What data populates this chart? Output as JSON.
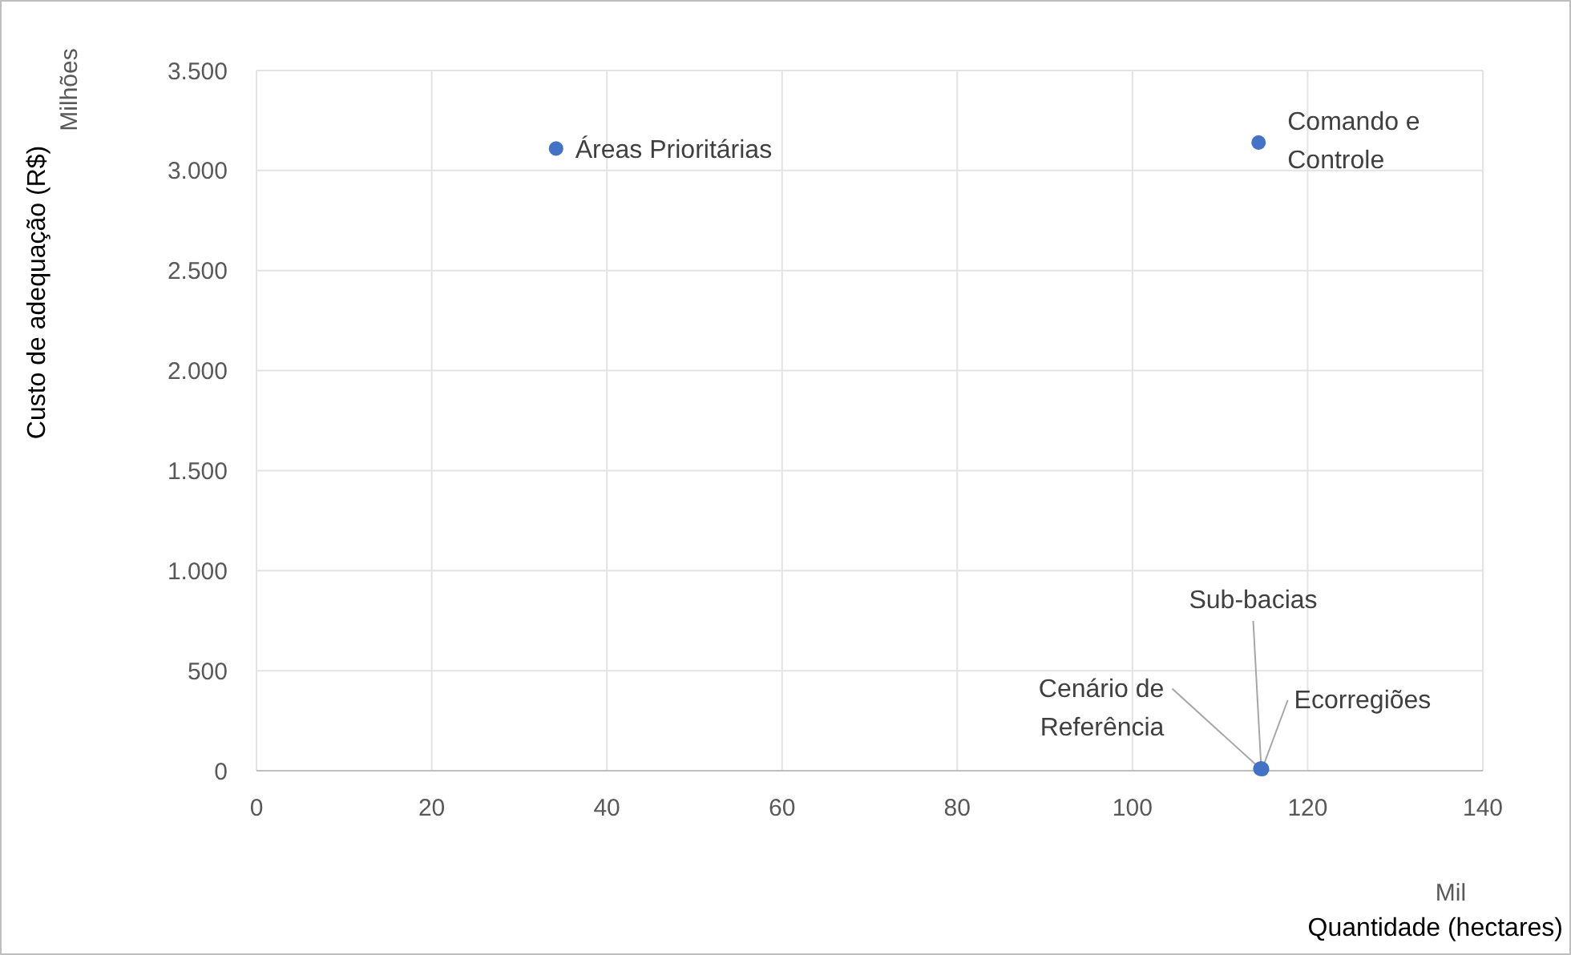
{
  "chart_data": {
    "type": "scatter",
    "xlabel": "Quantidade (hectares)",
    "ylabel": "Custo de adequação (R$)",
    "x": [
      34.2,
      114.4,
      114.6,
      114.7,
      114.8
    ],
    "values": [
      3110,
      3140,
      10,
      12,
      8
    ],
    "color": "#4472c4",
    "marker": "circle",
    "xlim": [
      0,
      140
    ],
    "xticks": [
      0,
      20,
      40,
      60,
      80,
      100,
      120,
      140
    ],
    "ylim": [
      0,
      3500
    ],
    "yticks": [
      {
        "value": 0,
        "label": "0"
      },
      {
        "value": 500,
        "label": "500"
      },
      {
        "value": 1000,
        "label": "1.000"
      },
      {
        "value": 1500,
        "label": "1.500"
      },
      {
        "value": 2000,
        "label": "2.000"
      },
      {
        "value": 2500,
        "label": "2.500"
      },
      {
        "value": 3000,
        "label": "3.000"
      },
      {
        "value": 3500,
        "label": "3.500"
      }
    ],
    "grid": true,
    "annotations": [
      "Milhões",
      "Mil",
      {
        "text": "Áreas Prioritárias",
        "x": 34.2,
        "y": 3110
      },
      {
        "text": "Comando e Controle",
        "x": 114.4,
        "y": 3140
      },
      {
        "text": "Cenário de Referência",
        "x": 114.6,
        "y": 10
      },
      {
        "text": "Sub-bacias",
        "x": 114.7,
        "y": 12
      },
      {
        "text": "Ecorregiões",
        "x": 114.8,
        "y": 8
      }
    ]
  }
}
